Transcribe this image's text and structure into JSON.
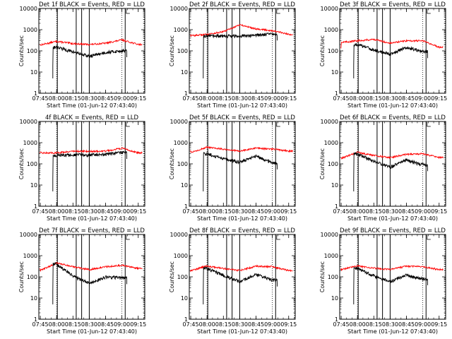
{
  "figure": {
    "xlabel": "Start Time (01-Jun-12 07:43:40)",
    "ylabel": "Counts/sec",
    "x_tick_labels": [
      "07:45",
      "08:00",
      "08:15",
      "08:30",
      "08:45",
      "09:00",
      "09:15"
    ],
    "y_tick_labels": [
      "1",
      "10",
      "100",
      "1000",
      "10000"
    ],
    "colors": {
      "events": "#000000",
      "lld": "#ff0000",
      "background": "#ffffff"
    }
  },
  "chart_data": [
    {
      "type": "line",
      "title": "Det 1f BLACK = Events, RED = LLD",
      "x": [
        "07:45",
        "08:00",
        "08:15",
        "08:30",
        "08:45",
        "09:00",
        "09:15"
      ],
      "yscale": "log",
      "ylim": [
        1,
        10000
      ],
      "series": [
        {
          "name": "Events",
          "values": [
            null,
            150,
            90,
            55,
            85,
            100,
            null
          ]
        },
        {
          "name": "LLD",
          "values": [
            190,
            280,
            220,
            200,
            230,
            330,
            200
          ]
        }
      ]
    },
    {
      "type": "line",
      "title": "Det 2f BLACK = Events, RED = LLD",
      "x": [
        "07:45",
        "08:00",
        "08:15",
        "08:30",
        "08:45",
        "09:00",
        "09:15"
      ],
      "yscale": "log",
      "ylim": [
        1,
        10000
      ],
      "series": [
        {
          "name": "Events",
          "values": [
            null,
            500,
            500,
            500,
            560,
            620,
            null
          ]
        },
        {
          "name": "LLD",
          "values": [
            520,
            600,
            800,
            1700,
            1100,
            900,
            600
          ]
        }
      ]
    },
    {
      "type": "line",
      "title": "Det 3f BLACK = Events, RED = LLD",
      "x": [
        "07:45",
        "08:00",
        "08:15",
        "08:30",
        "08:45",
        "09:00",
        "09:15"
      ],
      "yscale": "log",
      "ylim": [
        1,
        10000
      ],
      "series": [
        {
          "name": "Events",
          "values": [
            null,
            200,
            110,
            70,
            150,
            90,
            null
          ]
        },
        {
          "name": "LLD",
          "values": [
            250,
            300,
            350,
            230,
            300,
            300,
            150
          ]
        }
      ]
    },
    {
      "type": "line",
      "title": "4f BLACK = Events, RED = LLD",
      "x": [
        "07:45",
        "08:00",
        "08:15",
        "08:30",
        "08:45",
        "09:00",
        "09:15"
      ],
      "yscale": "log",
      "ylim": [
        1,
        10000
      ],
      "series": [
        {
          "name": "Events",
          "values": [
            null,
            250,
            260,
            260,
            280,
            340,
            null
          ]
        },
        {
          "name": "LLD",
          "values": [
            330,
            330,
            400,
            390,
            400,
            550,
            330
          ]
        }
      ]
    },
    {
      "type": "line",
      "title": "Det 5f BLACK = Events, RED = LLD",
      "x": [
        "07:45",
        "08:00",
        "08:15",
        "08:30",
        "08:45",
        "09:00",
        "09:15"
      ],
      "yscale": "log",
      "ylim": [
        1,
        10000
      ],
      "series": [
        {
          "name": "Events",
          "values": [
            null,
            300,
            180,
            120,
            230,
            110,
            null
          ]
        },
        {
          "name": "LLD",
          "values": [
            350,
            600,
            500,
            400,
            550,
            500,
            400
          ]
        }
      ]
    },
    {
      "type": "line",
      "title": "Det 6f BLACK = Events, RED = LLD",
      "x": [
        "07:45",
        "08:00",
        "08:15",
        "08:30",
        "08:45",
        "09:00",
        "09:15"
      ],
      "yscale": "log",
      "ylim": [
        1,
        10000
      ],
      "series": [
        {
          "name": "Events",
          "values": [
            null,
            300,
            130,
            70,
            150,
            90,
            null
          ]
        },
        {
          "name": "LLD",
          "values": [
            180,
            350,
            250,
            200,
            280,
            300,
            200
          ]
        }
      ]
    },
    {
      "type": "line",
      "title": "Det 7f BLACK = Events, RED = LLD",
      "x": [
        "07:45",
        "08:00",
        "08:15",
        "08:30",
        "08:45",
        "09:00",
        "09:15"
      ],
      "yscale": "log",
      "ylim": [
        1,
        10000
      ],
      "series": [
        {
          "name": "Events",
          "values": [
            null,
            400,
            110,
            50,
            100,
            90,
            null
          ]
        },
        {
          "name": "LLD",
          "values": [
            200,
            450,
            300,
            220,
            300,
            350,
            250
          ]
        }
      ]
    },
    {
      "type": "line",
      "title": "Det 8f BLACK = Events, RED = LLD",
      "x": [
        "07:45",
        "08:00",
        "08:15",
        "08:30",
        "08:45",
        "09:00",
        "09:15"
      ],
      "yscale": "log",
      "ylim": [
        1,
        10000
      ],
      "series": [
        {
          "name": "Events",
          "values": [
            null,
            250,
            120,
            60,
            130,
            70,
            null
          ]
        },
        {
          "name": "LLD",
          "values": [
            200,
            320,
            250,
            200,
            320,
            300,
            200
          ]
        }
      ]
    },
    {
      "type": "line",
      "title": "Det 9f BLACK = Events, RED = LLD",
      "x": [
        "07:45",
        "08:00",
        "08:15",
        "08:30",
        "08:45",
        "09:00",
        "09:15"
      ],
      "yscale": "log",
      "ylim": [
        1,
        10000
      ],
      "series": [
        {
          "name": "Events",
          "values": [
            null,
            250,
            110,
            60,
            120,
            80,
            null
          ]
        },
        {
          "name": "LLD",
          "values": [
            220,
            330,
            260,
            220,
            320,
            300,
            220
          ]
        }
      ]
    }
  ]
}
